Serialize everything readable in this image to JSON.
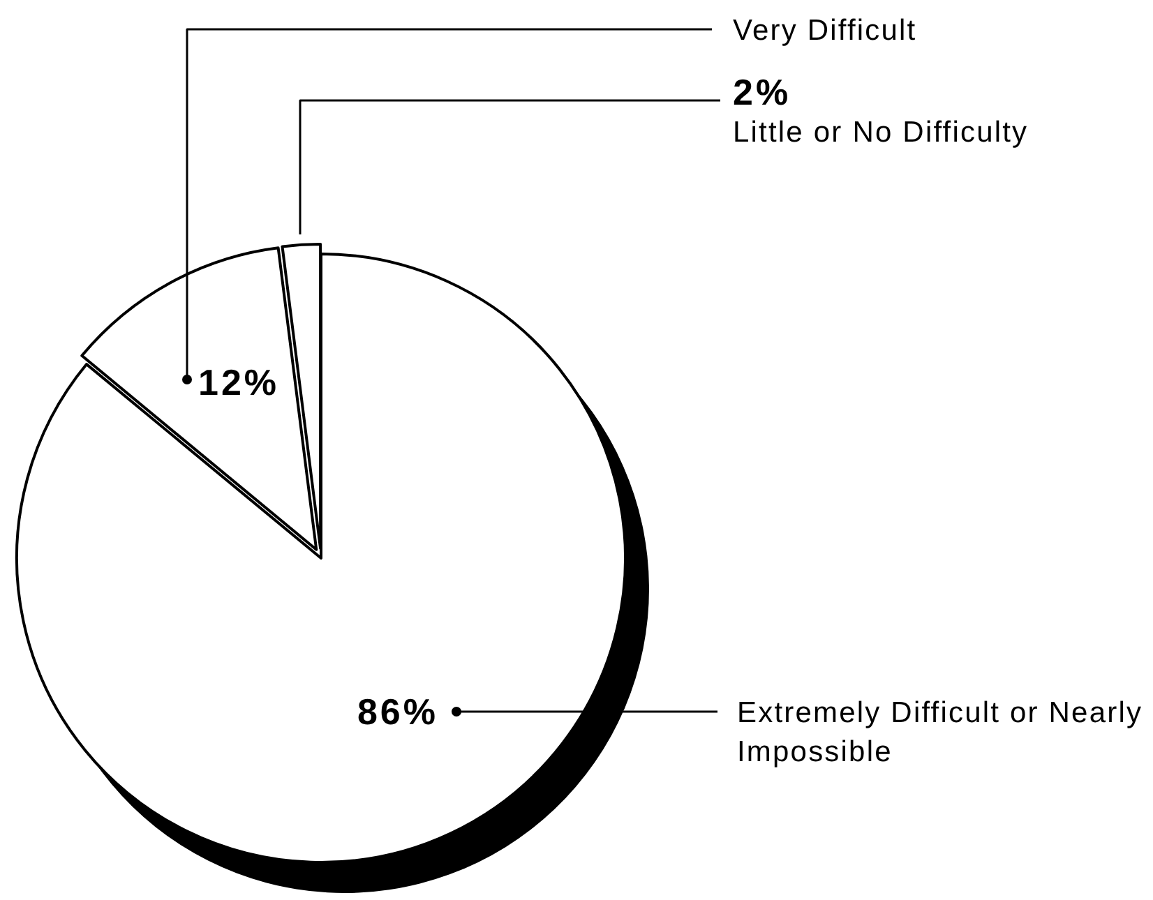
{
  "chart_data": {
    "type": "pie",
    "categories": [
      "Extremely Difficult or Nearly Impossible",
      "Very Difficult",
      "Little or No Difficulty"
    ],
    "values": [
      86,
      12,
      2
    ],
    "colors": [
      "#ffffff",
      "#ffffff",
      "#ffffff"
    ],
    "value_labels": [
      "86%",
      "12%",
      "2%"
    ]
  }
}
